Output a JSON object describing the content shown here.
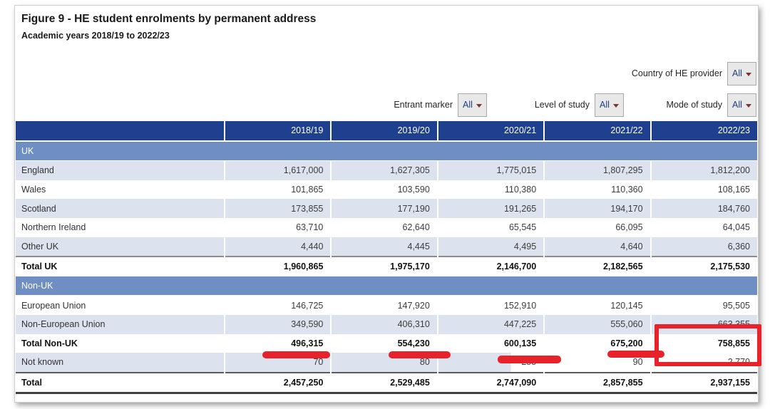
{
  "card": {
    "title": "Figure 9 - HE student enrolments by permanent address",
    "subtitle": "Academic years 2018/19 to 2022/23"
  },
  "filters": [
    {
      "label": "Country of HE provider",
      "value": "All"
    },
    {
      "label": "Entrant marker",
      "value": "All"
    },
    {
      "label": "Level of study",
      "value": "All"
    },
    {
      "label": "Mode of study",
      "value": "All"
    }
  ],
  "table": {
    "columns": [
      "2018/19",
      "2019/20",
      "2020/21",
      "2021/22",
      "2022/23"
    ],
    "rows": [
      {
        "type": "section",
        "label": "UK"
      },
      {
        "type": "data",
        "label": "England",
        "values": [
          "1,617,000",
          "1,627,305",
          "1,775,015",
          "1,807,295",
          "1,812,200"
        ],
        "shaded": true
      },
      {
        "type": "data",
        "label": "Wales",
        "values": [
          "101,865",
          "103,590",
          "110,380",
          "110,360",
          "108,165"
        ],
        "shaded": false
      },
      {
        "type": "data",
        "label": "Scotland",
        "values": [
          "173,855",
          "177,190",
          "191,265",
          "194,170",
          "184,760"
        ],
        "shaded": true
      },
      {
        "type": "data",
        "label": "Northern Ireland",
        "values": [
          "63,710",
          "62,640",
          "65,545",
          "66,095",
          "64,045"
        ],
        "shaded": false
      },
      {
        "type": "data",
        "label": "Other UK",
        "values": [
          "4,440",
          "4,445",
          "4,495",
          "4,640",
          "6,360"
        ],
        "shaded": true
      },
      {
        "type": "data",
        "label": "Total UK",
        "values": [
          "1,960,865",
          "1,975,170",
          "2,146,700",
          "2,182,565",
          "2,175,530"
        ],
        "shaded": false,
        "bold": true,
        "cls": "r-totaluk"
      },
      {
        "type": "section",
        "label": "Non-UK"
      },
      {
        "type": "data",
        "label": "European Union",
        "values": [
          "146,725",
          "147,920",
          "152,910",
          "120,145",
          "95,505"
        ],
        "shaded": false
      },
      {
        "type": "data",
        "label": "Non-European Union",
        "values": [
          "349,590",
          "406,310",
          "447,225",
          "555,060",
          "663,355"
        ],
        "shaded": true
      },
      {
        "type": "data",
        "label": "Total Non-UK",
        "values": [
          "496,315",
          "554,230",
          "600,135",
          "675,200",
          "758,855"
        ],
        "shaded": false,
        "bold": true
      },
      {
        "type": "data",
        "label": "Not known",
        "values": [
          "70",
          "80",
          "255",
          "90",
          "2,770"
        ],
        "shaded": true,
        "cellShades": [
          "s",
          "s",
          "split",
          "w",
          "w"
        ]
      },
      {
        "type": "data",
        "label": "Total",
        "values": [
          "2,457,250",
          "2,529,485",
          "2,747,090",
          "2,857,855",
          "2,937,155"
        ],
        "shaded": false,
        "bold": true,
        "cls": "r-grandtotal"
      }
    ]
  },
  "annotations": {
    "underlined_values": [
      "496,315",
      "554,230",
      "600,135",
      "675,200"
    ],
    "boxed_value": "758,855",
    "color": "#e8222a"
  },
  "colors": {
    "header_bg": "#1f3f8f",
    "section_band_bg": "#6e8ec4",
    "shaded_row_bg": "#dce2ee",
    "dropdown_bg": "#e8e8e8",
    "dropdown_text": "#1f3d7c",
    "annotation_red": "#e8222a"
  }
}
